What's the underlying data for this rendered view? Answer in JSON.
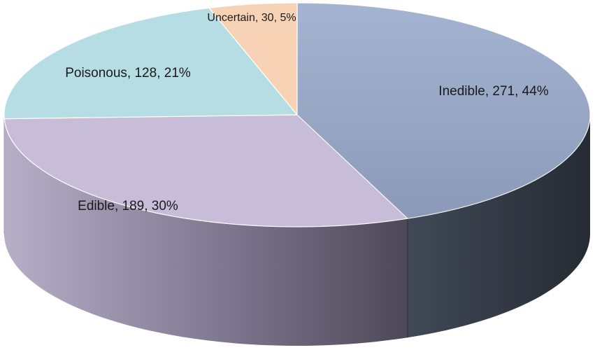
{
  "chart_data": {
    "type": "pie",
    "title": "",
    "legend": "none",
    "slices": [
      {
        "label": "Inedible",
        "value": 271,
        "percent": 44,
        "color": "#9aabcc",
        "data_label": "Inedible, 271, 44%"
      },
      {
        "label": "Edible",
        "value": 189,
        "percent": 30,
        "color": "#c8bdd9",
        "data_label": "Edible, 189, 30%"
      },
      {
        "label": "Poisonous",
        "value": 128,
        "percent": 21,
        "color": "#b5dde3",
        "data_label": "Poisonous, 128, 21%"
      },
      {
        "label": "Uncertain",
        "value": 30,
        "percent": 5,
        "color": "#f8d2b4",
        "data_label": "Uncertain, 30, 5%"
      }
    ]
  }
}
